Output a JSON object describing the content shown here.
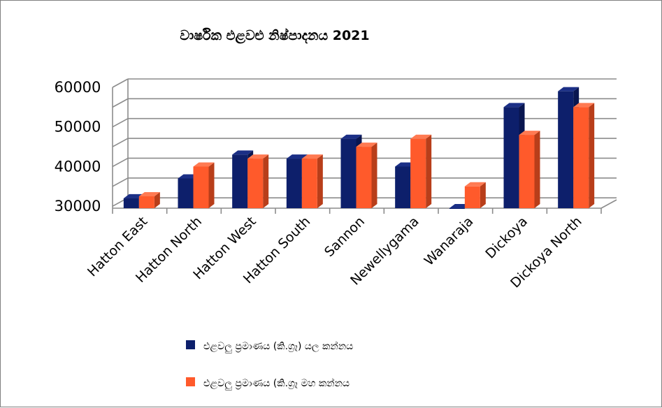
{
  "chart_data": {
    "type": "bar",
    "title": "වාර්ෂික එළවළු නිෂ්පාදනය 2021",
    "xlabel": "",
    "ylabel": "",
    "categories": [
      "Hatton East",
      "Hatton North",
      "Hatton West",
      "Hatton South",
      "Sannon",
      "Newellygama",
      "Wanaraja",
      "Dickoya",
      "Dickoya North"
    ],
    "series": [
      {
        "name": "එළවලු ප්‍රමාණය (කි.ග්‍රෑ) යල කන්නය",
        "values": [
          32000,
          37000,
          43000,
          42000,
          47000,
          40000,
          29500,
          55000,
          59000
        ]
      },
      {
        "name": "එළවලු ප්‍රමාණය (කි.ග්‍රෑ මහ කන්නය",
        "values": [
          32500,
          40000,
          42000,
          42000,
          45000,
          47000,
          35000,
          48000,
          55000
        ]
      }
    ],
    "ylim": [
      29500,
      60000
    ],
    "yticks": [
      "30000",
      "40000",
      "50000",
      "60000"
    ],
    "ytick_values": [
      30000,
      40000,
      50000,
      60000
    ],
    "grid": true,
    "legend": "bottom-left",
    "colors": {
      "series1": "#0d1f6b",
      "series2": "#ff5a2b"
    }
  }
}
